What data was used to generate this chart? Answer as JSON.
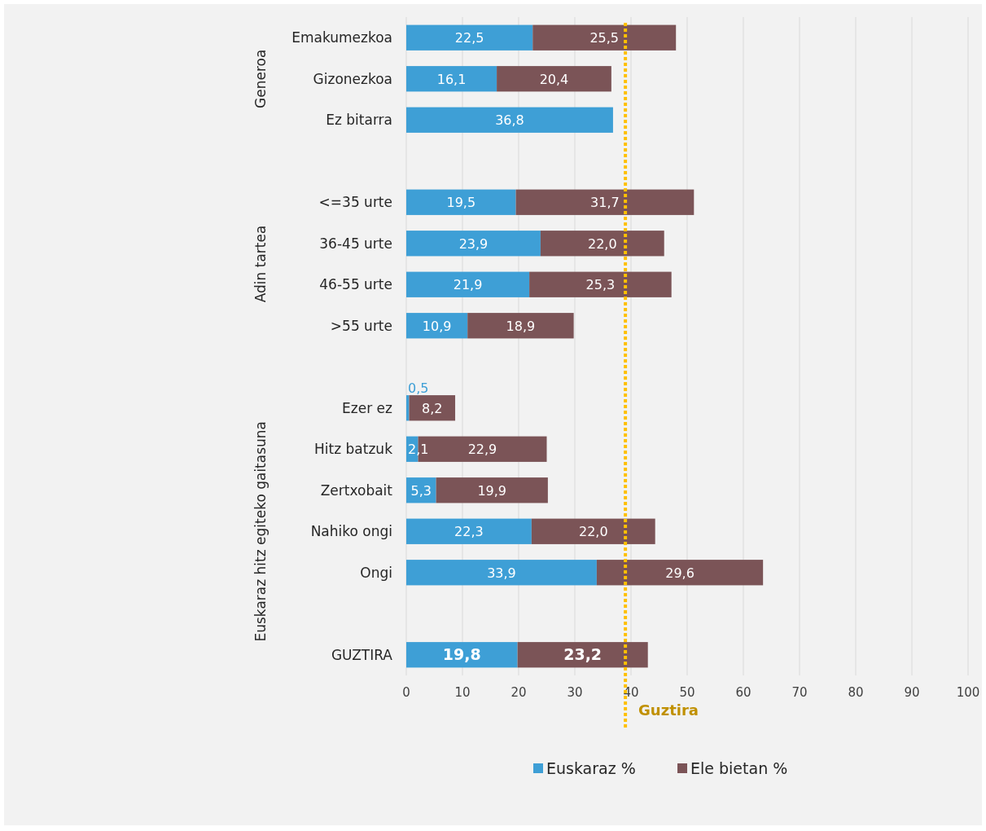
{
  "chart_data": {
    "type": "bar",
    "orientation": "horizontal",
    "stacked": true,
    "categories": [
      "Emakumezkoa",
      "Gizonezkoa",
      "Ez bitarra",
      null,
      "<=35 urte",
      "36-45 urte",
      "46-55 urte",
      ">55 urte",
      null,
      "Ezer ez",
      "Hitz batzuk",
      "Zertxobait",
      "Nahiko ongi",
      "Ongi",
      null,
      "GUZTIRA"
    ],
    "series": [
      {
        "name": "Euskaraz %",
        "color": "#3e9fd6",
        "values": [
          22.5,
          16.1,
          36.8,
          null,
          19.5,
          23.9,
          21.9,
          10.9,
          null,
          0.5,
          2.1,
          5.3,
          22.3,
          33.9,
          null,
          19.8
        ],
        "value_labels": [
          "22,5",
          "16,1",
          "36,8",
          null,
          "19,5",
          "23,9",
          "21,9",
          "10,9",
          null,
          "0,5",
          "2,1",
          "5,3",
          "22,3",
          "33,9",
          null,
          "19,8"
        ]
      },
      {
        "name": "Ele bietan %",
        "color": "#7b5457",
        "values": [
          25.5,
          20.4,
          null,
          null,
          31.7,
          22.0,
          25.3,
          18.9,
          null,
          8.2,
          22.9,
          19.9,
          22.0,
          29.6,
          null,
          23.2
        ],
        "value_labels": [
          "25,5",
          "20,4",
          null,
          null,
          "31,7",
          "22,0",
          "25,3",
          "18,9",
          null,
          "8,2",
          "22,9",
          "19,9",
          "22,0",
          "29,6",
          null,
          "23,2"
        ]
      }
    ],
    "xlim": [
      0,
      100
    ],
    "xticks": [
      0,
      10,
      20,
      30,
      40,
      50,
      60,
      70,
      80,
      90,
      100
    ],
    "grid": "x",
    "legend": "bottom",
    "ref_lines": [
      {
        "axis": "x",
        "value": 39,
        "label": "Guztira",
        "color": "#ffc000",
        "line_style": "dotted"
      }
    ],
    "annotations": [
      "Generoa",
      "Adin tartea",
      "Euskaraz hitz egiteko gaitasuna"
    ]
  }
}
